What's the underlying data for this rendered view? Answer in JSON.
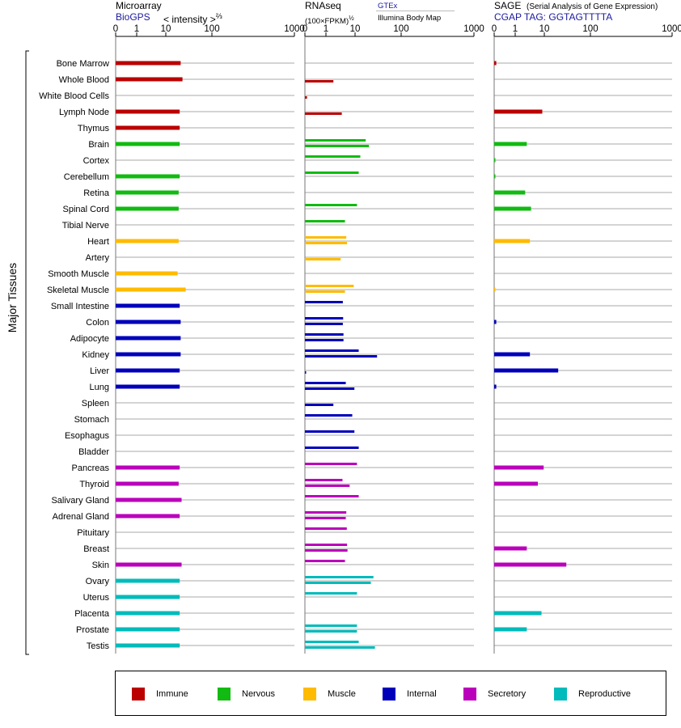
{
  "headers": {
    "microarray": {
      "title": "Microarray",
      "source": "BioGPS",
      "unit_prefix": "< intensity >",
      "unit_exp": "⅔"
    },
    "rnaseq": {
      "title": "RNAseq",
      "unit": "(100×FPKM)",
      "unit_exp": "½",
      "source_a": "GTEx",
      "source_b": "Illumina Body Map"
    },
    "sage": {
      "title": "SAGE",
      "subtitle": "(Serial Analysis of Gene Expression)",
      "tag": "CGAP TAG: GGTAGTTTTA"
    }
  },
  "y_axis_label": "Major Tissues",
  "colors": {
    "Immune": "#bb0000",
    "Nervous": "#11bb11",
    "Muscle": "#ffbb00",
    "Internal": "#0000bb",
    "Secretory": "#bb00bb",
    "Reproductive": "#00bbbb"
  },
  "legend": [
    {
      "label": "Immune",
      "color": "#bb0000"
    },
    {
      "label": "Nervous",
      "color": "#11bb11"
    },
    {
      "label": "Muscle",
      "color": "#ffbb00"
    },
    {
      "label": "Internal",
      "color": "#0000bb"
    },
    {
      "label": "Secretory",
      "color": "#bb00bb"
    },
    {
      "label": "Reproductive",
      "color": "#00bbbb"
    }
  ],
  "chart_data": {
    "type": "bar",
    "orientation": "horizontal",
    "scale": "log-like (0, 1, 10, 100, 1000)",
    "ticks": [
      "0",
      "1",
      "10",
      "100",
      "1000"
    ],
    "tick_values": [
      0,
      1,
      10,
      100,
      1000
    ],
    "xlim": [
      0,
      1000
    ],
    "categories": [
      "Bone Marrow",
      "Whole Blood",
      "White Blood Cells",
      "Lymph Node",
      "Thymus",
      "Brain",
      "Cortex",
      "Cerebellum",
      "Retina",
      "Spinal Cord",
      "Tibial Nerve",
      "Heart",
      "Artery",
      "Smooth Muscle",
      "Skeletal Muscle",
      "Small Intestine",
      "Colon",
      "Adipocyte",
      "Kidney",
      "Liver",
      "Lung",
      "Spleen",
      "Stomach",
      "Esophagus",
      "Bladder",
      "Pancreas",
      "Thyroid",
      "Salivary Gland",
      "Adrenal Gland",
      "Pituitary",
      "Breast",
      "Skin",
      "Ovary",
      "Uterus",
      "Placenta",
      "Prostate",
      "Testis"
    ],
    "tissue_groups": [
      "Immune",
      "Immune",
      "Immune",
      "Immune",
      "Immune",
      "Nervous",
      "Nervous",
      "Nervous",
      "Nervous",
      "Nervous",
      "Nervous",
      "Muscle",
      "Muscle",
      "Muscle",
      "Muscle",
      "Internal",
      "Internal",
      "Internal",
      "Internal",
      "Internal",
      "Internal",
      "Internal",
      "Internal",
      "Internal",
      "Internal",
      "Secretory",
      "Secretory",
      "Secretory",
      "Secretory",
      "Secretory",
      "Secretory",
      "Secretory",
      "Reproductive",
      "Reproductive",
      "Reproductive",
      "Reproductive",
      "Reproductive"
    ],
    "series": [
      {
        "name": "Microarray",
        "values": [
          21,
          23,
          null,
          20,
          20,
          20,
          null,
          20,
          19,
          19,
          null,
          19,
          null,
          18,
          27,
          20,
          21,
          21,
          21,
          20,
          20,
          null,
          null,
          null,
          null,
          20,
          19,
          22,
          20,
          null,
          null,
          22,
          20,
          20,
          20,
          20,
          20
        ]
      },
      {
        "name": "RNAseq GTEx",
        "values": [
          null,
          null,
          null,
          null,
          null,
          17,
          13,
          12,
          null,
          11,
          4.5,
          5,
          null,
          null,
          9,
          3.8,
          3.9,
          4,
          12,
          null,
          4.8,
          null,
          8,
          9.5,
          12,
          11,
          3.7,
          12,
          5,
          5.2,
          5.3,
          4.5,
          25,
          11,
          null,
          11,
          12
        ]
      },
      {
        "name": "RNAseq Illumina",
        "values": [
          null,
          1.8,
          0.1,
          3.5,
          null,
          20,
          null,
          null,
          null,
          null,
          null,
          5.3,
          3.2,
          null,
          4.5,
          null,
          3.8,
          4,
          30,
          0.05,
          9.5,
          1.8,
          null,
          null,
          null,
          null,
          6.5,
          null,
          4.8,
          null,
          5.5,
          null,
          22,
          null,
          null,
          11,
          27
        ]
      },
      {
        "name": "SAGE",
        "values": [
          0.1,
          null,
          null,
          8.5,
          null,
          2.5,
          0.05,
          0.05,
          2.2,
          3.5,
          null,
          3.2,
          null,
          null,
          0.05,
          null,
          0.1,
          null,
          3.2,
          20,
          0.1,
          null,
          null,
          null,
          null,
          9.5,
          6,
          null,
          null,
          null,
          2.5,
          30,
          null,
          null,
          8,
          2.5,
          null
        ]
      }
    ]
  }
}
